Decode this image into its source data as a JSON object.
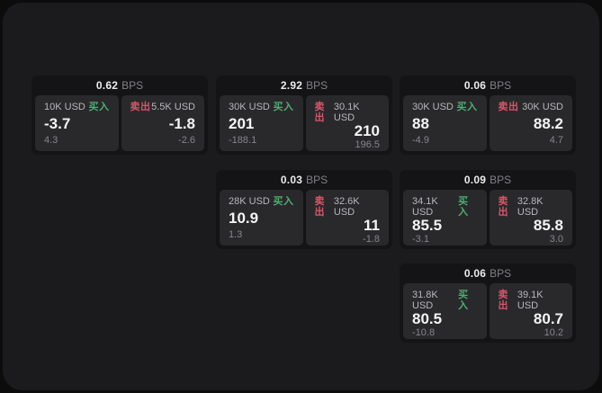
{
  "labels": {
    "bps": "BPS",
    "buy": "买入",
    "sell": "卖出"
  },
  "colors": {
    "backdrop": "#0c0c0d",
    "surface": "#1b1b1d",
    "card": "#141416",
    "tile": "#29292c",
    "buy_green": "#4cae70",
    "sell_red": "#da5568",
    "primary_text": "#f4f4f5",
    "muted_text": "#86868b"
  },
  "cards": [
    {
      "bps": "0.62",
      "buy": {
        "notional": "10K USD",
        "price": "-3.7",
        "delta": "4.3"
      },
      "sell": {
        "notional": "5.5K USD",
        "price": "-1.8",
        "delta": "-2.6"
      }
    },
    {
      "bps": "2.92",
      "buy": {
        "notional": "30K USD",
        "price": "201",
        "delta": "-188.1"
      },
      "sell": {
        "notional": "30.1K USD",
        "price": "210",
        "delta": "196.5"
      }
    },
    {
      "bps": "0.06",
      "buy": {
        "notional": "30K USD",
        "price": "88",
        "delta": "-4.9"
      },
      "sell": {
        "notional": "30K USD",
        "price": "88.2",
        "delta": "4.7"
      }
    },
    {
      "bps": "0.03",
      "buy": {
        "notional": "28K USD",
        "price": "10.9",
        "delta": "1.3"
      },
      "sell": {
        "notional": "32.6K USD",
        "price": "11",
        "delta": "-1.8"
      }
    },
    {
      "bps": "0.09",
      "buy": {
        "notional": "34.1K USD",
        "price": "85.5",
        "delta": "-3.1"
      },
      "sell": {
        "notional": "32.8K USD",
        "price": "85.8",
        "delta": "3.0"
      }
    },
    {
      "bps": "0.06",
      "buy": {
        "notional": "31.8K USD",
        "price": "80.5",
        "delta": "-10.8"
      },
      "sell": {
        "notional": "39.1K USD",
        "price": "80.7",
        "delta": "10.2"
      }
    }
  ]
}
